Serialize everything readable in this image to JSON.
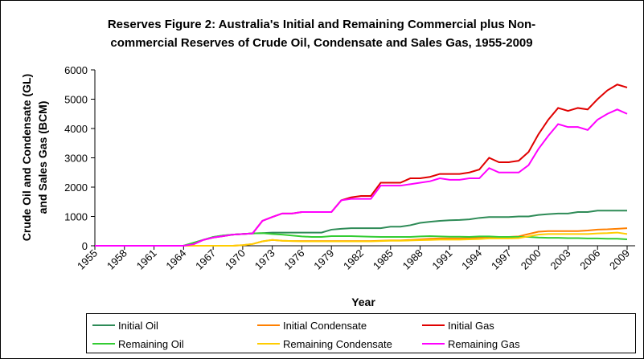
{
  "chart_data": {
    "type": "line",
    "title": [
      "Reserves Figure 2: Australia's Initial and Remaining Commercial plus Non-",
      "commercial Reserves of Crude Oil, Condensate and Sales Gas, 1955-2009"
    ],
    "x_label": "Year",
    "y_label": [
      "Crude Oil and Condensate (GL)",
      "and Sales Gas (BCM)"
    ],
    "x": [
      1955,
      1956,
      1957,
      1958,
      1959,
      1960,
      1961,
      1962,
      1963,
      1964,
      1965,
      1966,
      1967,
      1968,
      1969,
      1970,
      1971,
      1972,
      1973,
      1974,
      1975,
      1976,
      1977,
      1978,
      1979,
      1980,
      1981,
      1982,
      1983,
      1984,
      1985,
      1986,
      1987,
      1988,
      1989,
      1990,
      1991,
      1992,
      1993,
      1994,
      1995,
      1996,
      1997,
      1998,
      1999,
      2000,
      2001,
      2002,
      2003,
      2004,
      2005,
      2006,
      2007,
      2008,
      2009
    ],
    "xlim": [
      1955,
      2009
    ],
    "xticks": [
      1955,
      1958,
      1961,
      1964,
      1967,
      1970,
      1973,
      1976,
      1979,
      1982,
      1985,
      1988,
      1991,
      1994,
      1997,
      2000,
      2003,
      2006,
      2009
    ],
    "ylim": [
      0,
      6000
    ],
    "yticks": [
      0,
      1000,
      2000,
      3000,
      4000,
      5000,
      6000
    ],
    "grid": false,
    "legend": "bottom",
    "series": [
      {
        "name": "Initial Oil",
        "color": "#2e8b57",
        "values": [
          0,
          0,
          0,
          0,
          0,
          0,
          0,
          0,
          0,
          0,
          100,
          200,
          300,
          350,
          380,
          400,
          420,
          430,
          450,
          450,
          450,
          450,
          450,
          450,
          550,
          580,
          600,
          600,
          600,
          600,
          650,
          650,
          700,
          780,
          820,
          850,
          870,
          880,
          900,
          950,
          980,
          980,
          980,
          1000,
          1000,
          1050,
          1080,
          1100,
          1100,
          1150,
          1150,
          1200,
          1200,
          1200,
          1200
        ]
      },
      {
        "name": "Initial Condensate",
        "color": "#ff8000",
        "values": [
          0,
          0,
          0,
          0,
          0,
          0,
          0,
          0,
          0,
          0,
          0,
          0,
          0,
          0,
          0,
          20,
          60,
          150,
          200,
          170,
          160,
          160,
          160,
          160,
          160,
          160,
          160,
          160,
          160,
          170,
          180,
          180,
          200,
          220,
          240,
          250,
          250,
          250,
          260,
          280,
          300,
          300,
          300,
          320,
          400,
          480,
          500,
          500,
          500,
          500,
          520,
          550,
          560,
          580,
          600
        ]
      },
      {
        "name": "Initial Gas",
        "color": "#e00000",
        "values": [
          0,
          0,
          0,
          0,
          0,
          0,
          0,
          0,
          0,
          0,
          50,
          200,
          280,
          330,
          380,
          400,
          420,
          850,
          980,
          1100,
          1100,
          1150,
          1150,
          1150,
          1150,
          1550,
          1650,
          1700,
          1700,
          2150,
          2150,
          2150,
          2300,
          2300,
          2350,
          2450,
          2450,
          2450,
          2500,
          2600,
          3000,
          2850,
          2850,
          2900,
          3200,
          3800,
          4300,
          4700,
          4600,
          4700,
          4650,
          5000,
          5300,
          5500,
          5400
        ]
      },
      {
        "name": "Remaining Oil",
        "color": "#33cc33",
        "values": [
          0,
          0,
          0,
          0,
          0,
          0,
          0,
          0,
          0,
          0,
          100,
          200,
          300,
          350,
          380,
          400,
          420,
          430,
          400,
          380,
          350,
          320,
          300,
          300,
          330,
          330,
          330,
          320,
          310,
          300,
          300,
          300,
          300,
          320,
          330,
          320,
          310,
          310,
          300,
          320,
          320,
          300,
          300,
          300,
          300,
          280,
          270,
          270,
          260,
          260,
          250,
          250,
          240,
          240,
          220
        ]
      },
      {
        "name": "Remaining Condensate",
        "color": "#ffcc00",
        "values": [
          0,
          0,
          0,
          0,
          0,
          0,
          0,
          0,
          0,
          0,
          0,
          0,
          0,
          0,
          0,
          20,
          60,
          150,
          200,
          170,
          160,
          150,
          150,
          150,
          150,
          150,
          150,
          150,
          150,
          160,
          170,
          170,
          180,
          190,
          200,
          210,
          210,
          210,
          220,
          230,
          250,
          250,
          250,
          260,
          320,
          380,
          400,
          400,
          400,
          400,
          400,
          420,
          430,
          450,
          400
        ]
      },
      {
        "name": "Remaining Gas",
        "color": "#ff00ff",
        "values": [
          0,
          0,
          0,
          0,
          0,
          0,
          0,
          0,
          0,
          0,
          50,
          200,
          280,
          330,
          380,
          400,
          420,
          850,
          980,
          1100,
          1100,
          1150,
          1150,
          1150,
          1150,
          1550,
          1600,
          1600,
          1600,
          2050,
          2050,
          2050,
          2100,
          2150,
          2200,
          2300,
          2250,
          2250,
          2300,
          2300,
          2650,
          2500,
          2500,
          2500,
          2750,
          3300,
          3750,
          4150,
          4050,
          4050,
          3950,
          4300,
          4500,
          4650,
          4500
        ]
      }
    ]
  }
}
